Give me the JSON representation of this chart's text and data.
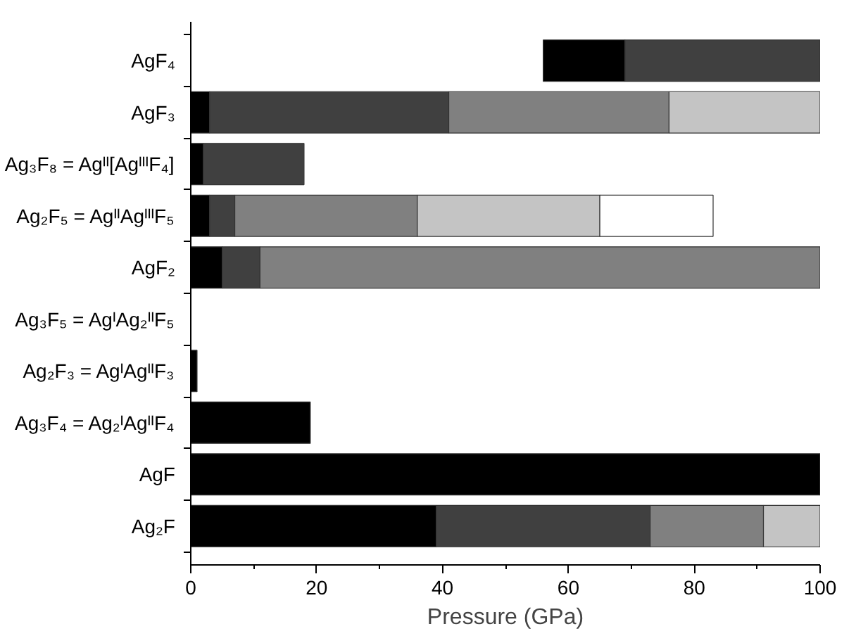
{
  "chart_data": {
    "type": "bar",
    "orientation": "horizontal",
    "xlabel": "Pressure (GPa)",
    "categories": [
      "AgF₄",
      "AgF₃",
      "Ag₃F₈ = Agᴵᴵ[AgᴵᴵᴵF₄]",
      "Ag₂F₅ = AgᴵᴵAgᴵᴵᴵF₅",
      "AgF₂",
      "Ag₃F₅ = AgᴵAg₂ᴵᴵF₅",
      "Ag₂F₃ = AgᴵAgᴵᴵF₃",
      "Ag₃F₄ = Ag₂ᴵAgᴵᴵF₄",
      "AgF",
      "Ag₂F"
    ],
    "series": [
      {
        "color": "#000000",
        "base": [
          56,
          0,
          0,
          0,
          0,
          null,
          0,
          0,
          0,
          0
        ],
        "values": [
          13,
          3,
          2,
          3,
          5,
          null,
          1,
          19,
          100,
          39
        ]
      },
      {
        "color": "#404040",
        "base": [
          69,
          3,
          2,
          3,
          5,
          null,
          null,
          null,
          null,
          39
        ],
        "values": [
          31,
          38,
          16,
          4,
          6,
          null,
          null,
          null,
          null,
          34
        ]
      },
      {
        "color": "#808080",
        "base": [
          null,
          41,
          null,
          7,
          11,
          null,
          null,
          null,
          null,
          73
        ],
        "values": [
          null,
          35,
          null,
          29,
          89,
          null,
          null,
          null,
          null,
          18
        ]
      },
      {
        "color": "#c4c4c4",
        "base": [
          null,
          76,
          null,
          36,
          null,
          null,
          null,
          null,
          null,
          91
        ],
        "values": [
          null,
          24,
          null,
          29,
          null,
          null,
          null,
          null,
          null,
          9
        ]
      },
      {
        "color": "#ffffff",
        "base": [
          null,
          null,
          null,
          65,
          null,
          null,
          null,
          null,
          null,
          null
        ],
        "values": [
          null,
          null,
          null,
          18,
          null,
          null,
          null,
          null,
          null,
          null
        ]
      }
    ],
    "xlim": [
      0,
      100
    ],
    "xticks": [
      0,
      20,
      40,
      60,
      80,
      100
    ],
    "grid": false
  }
}
